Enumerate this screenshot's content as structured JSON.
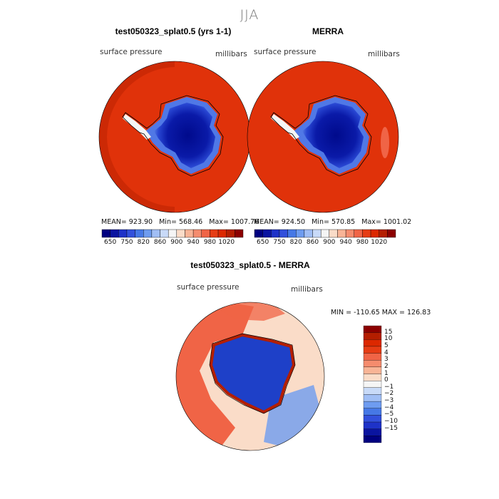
{
  "figure": {
    "season": "JJA"
  },
  "panels": [
    {
      "title": "test050323_splat0.5 (yrs 1-1)",
      "field_label": "surface pressure",
      "units": "millibars",
      "stats": {
        "mean_label": "MEAN=",
        "mean": "923.90",
        "min_label": "Min=",
        "min": "568.46",
        "max_label": "Max=",
        "max": "1007.76"
      }
    },
    {
      "title": "MERRA",
      "field_label": "surface pressure",
      "units": "millibars",
      "stats": {
        "mean_label": "MEAN=",
        "mean": "924.50",
        "min_label": "Min=",
        "min": "570.85",
        "max_label": "Max=",
        "max": "1001.02"
      }
    }
  ],
  "colorbar": {
    "colors": [
      "#000080",
      "#0a14a0",
      "#1e32c8",
      "#3250dc",
      "#4678e6",
      "#6e9cf0",
      "#a0bef5",
      "#c8daf8",
      "#f5f5f5",
      "#fadcc8",
      "#f8b496",
      "#f58c6e",
      "#f06446",
      "#e63c14",
      "#dc2800",
      "#b41e00",
      "#8c0000"
    ],
    "tick_labels": [
      "650",
      "750",
      "820",
      "860",
      "900",
      "940",
      "980",
      "1020"
    ]
  },
  "diff_panel": {
    "title": "test050323_splat0.5 - MERRA",
    "field_label": "surface pressure",
    "units": "millibars",
    "range_text": "MIN = -110.65 MAX = 126.83",
    "legend": {
      "colors": [
        "#8c0000",
        "#b41e00",
        "#dc2800",
        "#e63c14",
        "#f06446",
        "#f58c6e",
        "#f8b496",
        "#fadcc8",
        "#f5f5f5",
        "#c8daf8",
        "#a0bef5",
        "#6e9cf0",
        "#4678e6",
        "#3250dc",
        "#1e32c8",
        "#0a14a0",
        "#000080"
      ],
      "tick_labels": [
        "15",
        "10",
        "5",
        "4",
        "3",
        "2",
        "1",
        "0",
        "−1",
        "−2",
        "−3",
        "−4",
        "−5",
        "−10",
        "−15"
      ]
    }
  },
  "map_colors": {
    "ocean_high": "#e0320a",
    "ocean_dark": "#c82805",
    "land_low": "#000a8c",
    "land_mid": "#1428b4",
    "land_edge": "#5078e6",
    "coast": "#000000",
    "diff_pos": "#f06446",
    "diff_neg": "#6e9cf0"
  }
}
